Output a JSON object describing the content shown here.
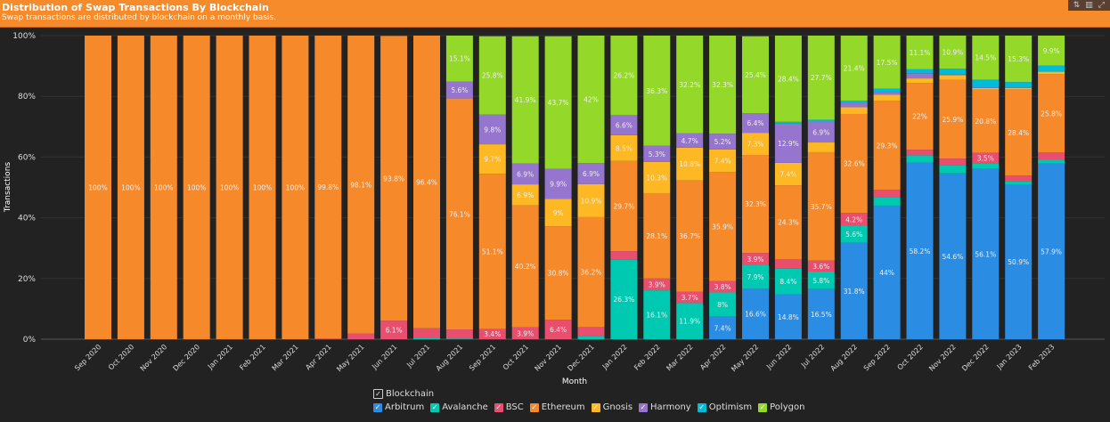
{
  "header": {
    "title": "Distribution of Swap Transactions By Blockchain",
    "subtitle": "Swap transactions are distributed by blockchain on a monthly basis.",
    "tools": [
      {
        "icon": "sort-icon",
        "glyph": "⇅"
      },
      {
        "icon": "bar-chart-icon",
        "glyph": "▥"
      },
      {
        "icon": "expand-icon",
        "glyph": "⤢"
      }
    ]
  },
  "legend": {
    "title": "Blockchain",
    "check": "✓"
  },
  "chart_data": {
    "type": "bar",
    "stacked": true,
    "normalized": true,
    "title": "Distribution of Swap Transactions By Blockchain",
    "xlabel": "Month",
    "ylabel": "Transactions",
    "ylim": [
      0,
      100
    ],
    "yticks": [
      "0%",
      "20%",
      "40%",
      "60%",
      "80%",
      "100%"
    ],
    "grid": true,
    "legend_position": "bottom",
    "categories": [
      "Sep 2020",
      "Oct 2020",
      "Nov 2020",
      "Dec 2020",
      "Jan 2021",
      "Feb 2021",
      "Mar 2021",
      "Apr 2021",
      "May 2021",
      "Jun 2021",
      "Jul 2021",
      "Aug 2021",
      "Sep 2021",
      "Oct 2021",
      "Nov 2021",
      "Dec 2021",
      "Jan 2022",
      "Feb 2022",
      "Mar 2022",
      "Apr 2022",
      "May 2022",
      "Jun 2022",
      "Jul 2022",
      "Aug 2022",
      "Sep 2022",
      "Oct 2022",
      "Nov 2022",
      "Dec 2022",
      "Jan 2023",
      "Feb 2023"
    ],
    "series": [
      {
        "name": "Arbitrum",
        "color": "#2a8ce2",
        "values": [
          0,
          0,
          0,
          0,
          0,
          0,
          0,
          0,
          0,
          0,
          0,
          0,
          0,
          0,
          0,
          0,
          0,
          0,
          0,
          7.4,
          16.6,
          14.8,
          16.5,
          31.8,
          44,
          58.2,
          54.6,
          56.1,
          50.9,
          57.9
        ]
      },
      {
        "name": "Avalanche",
        "color": "#00c9b1",
        "values": [
          0,
          0,
          0,
          0,
          0,
          0,
          0,
          0,
          0,
          0,
          0.3,
          0.2,
          0,
          0,
          0,
          1,
          26.3,
          16.1,
          11.9,
          8,
          7.9,
          8.4,
          5.8,
          5.6,
          2.8,
          2.4,
          2.6,
          1.8,
          1.2,
          1.2
        ]
      },
      {
        "name": "BSC",
        "color": "#e84f6e",
        "values": [
          0,
          0,
          0,
          0,
          0,
          0,
          0,
          0.2,
          1.9,
          6.1,
          3.3,
          3,
          3.4,
          3.9,
          6.4,
          3,
          2.7,
          3.9,
          3.7,
          3.8,
          3.9,
          3.2,
          3.6,
          4.2,
          2.4,
          1.8,
          2.3,
          3.5,
          1.8,
          2.4
        ]
      },
      {
        "name": "Ethereum",
        "color": "#f68a2b",
        "values": [
          100,
          100,
          100,
          100,
          100,
          100,
          100,
          99.8,
          98.1,
          93.8,
          96.4,
          76.1,
          51.1,
          40.2,
          30.8,
          36.2,
          29.7,
          28.1,
          36.7,
          35.9,
          32.3,
          24.3,
          35.7,
          32.6,
          29.3,
          22,
          25.9,
          20.8,
          28.4,
          25.8
        ]
      },
      {
        "name": "Gnosis",
        "color": "#fdb823",
        "values": [
          0,
          0,
          0,
          0,
          0,
          0,
          0,
          0,
          0,
          0,
          0,
          0,
          9.7,
          6.9,
          9,
          10.9,
          8.5,
          10.3,
          10.8,
          7.4,
          7.3,
          7.4,
          3.2,
          2.2,
          2,
          1.5,
          1.6,
          0.5,
          0.5,
          0.8
        ]
      },
      {
        "name": "Harmony",
        "color": "#9575cd",
        "values": [
          0,
          0,
          0,
          0,
          0,
          0,
          0,
          0,
          0,
          0,
          0,
          5.6,
          9.8,
          6.9,
          9.9,
          6.9,
          6.6,
          5.3,
          4.7,
          5.2,
          6.4,
          12.9,
          6.9,
          1.6,
          0.9,
          1.7,
          0.3,
          0.2,
          0.1,
          0
        ]
      },
      {
        "name": "Optimism",
        "color": "#00bcd9",
        "values": [
          0,
          0,
          0,
          0,
          0,
          0,
          0,
          0,
          0,
          0,
          0,
          0,
          0,
          0,
          0,
          0,
          0,
          0,
          0,
          0,
          0,
          0.6,
          0.6,
          0.6,
          1.1,
          1.3,
          1.8,
          2.6,
          1.8,
          2
        ]
      },
      {
        "name": "Polygon",
        "color": "#94d82a",
        "values": [
          0,
          0,
          0,
          0,
          0,
          0,
          0,
          0,
          0,
          0,
          0,
          15.1,
          25.8,
          41.9,
          43.7,
          42,
          26.2,
          36.3,
          32.2,
          32.3,
          25.4,
          28.4,
          27.7,
          21.4,
          17.5,
          11.1,
          10.9,
          14.5,
          15.3,
          9.9
        ]
      }
    ]
  }
}
